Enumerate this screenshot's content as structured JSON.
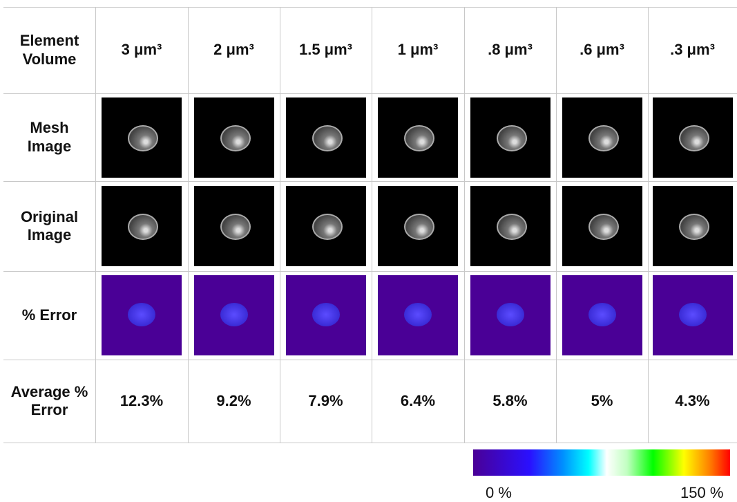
{
  "table": {
    "header": [
      "Element Volume",
      "3 μm³",
      "2 μm³",
      "1.5 μm³",
      "1 μm³",
      ".8 μm³",
      ".6 μm³",
      ".3 μm³"
    ],
    "row_labels": [
      "Mesh Image",
      "Original Image",
      "% Error",
      "Average % Error"
    ],
    "average_error": [
      "12.3%",
      "9.2%",
      "7.9%",
      "6.4%",
      "5.8%",
      "5%",
      "4.3%"
    ]
  },
  "colorbar": {
    "min_label": "0 %",
    "max_label": "150 %"
  }
}
